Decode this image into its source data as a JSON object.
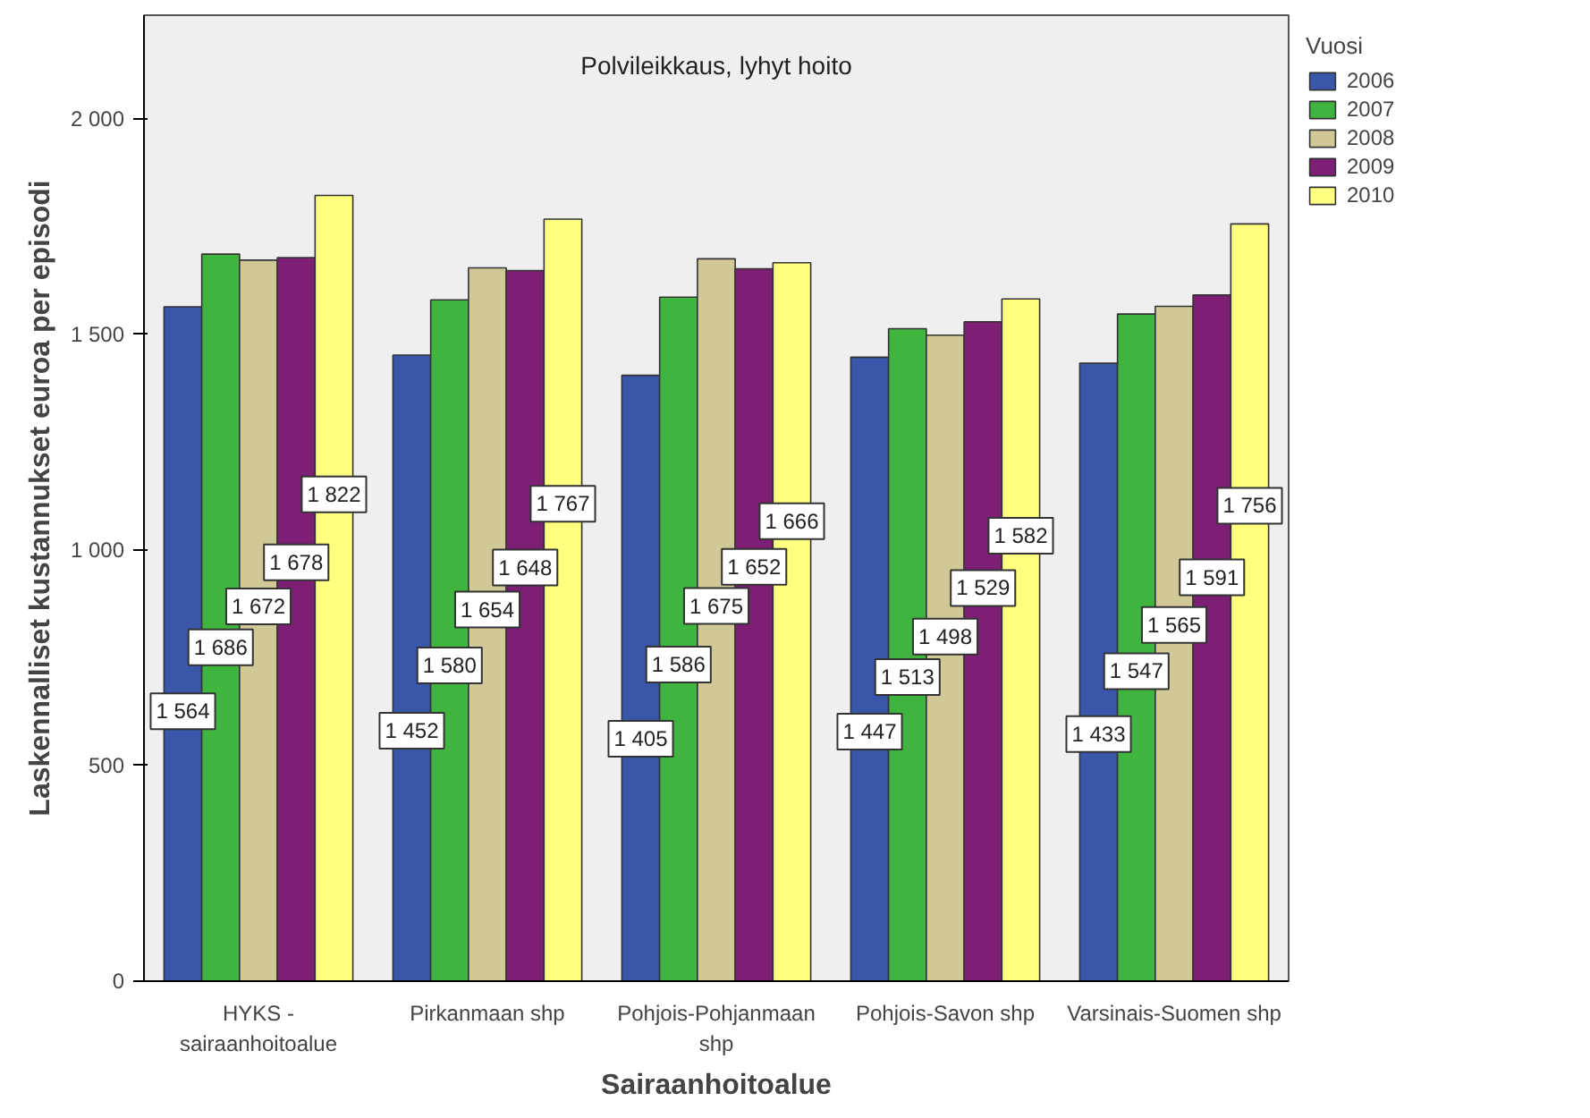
{
  "chart_data": {
    "type": "bar",
    "title": "Polvileikkaus, lyhyt hoito",
    "xlabel": "Sairaanhoitoalue",
    "ylabel": "Laskennalliset kustannukset euroa per episodi",
    "legend_title": "Vuosi",
    "categories": [
      "HYKS -\nsairaanhoitoalue",
      "Pirkanmaan shp",
      "Pohjois-Pohjanmaan\nshp",
      "Pohjois-Savon shp",
      "Varsinais-Suomen shp"
    ],
    "series": [
      {
        "name": "2006",
        "color": "#3a56a8",
        "values": [
          1564,
          1452,
          1405,
          1447,
          1433
        ]
      },
      {
        "name": "2007",
        "color": "#3fb53f",
        "values": [
          1686,
          1580,
          1586,
          1513,
          1547
        ]
      },
      {
        "name": "2008",
        "color": "#d0c997",
        "values": [
          1672,
          1654,
          1675,
          1498,
          1565
        ]
      },
      {
        "name": "2009",
        "color": "#7c1f75",
        "values": [
          1678,
          1648,
          1652,
          1529,
          1591
        ]
      },
      {
        "name": "2010",
        "color": "#ffff80",
        "values": [
          1822,
          1767,
          1666,
          1582,
          1756
        ]
      }
    ],
    "ylim": [
      0,
      2240
    ],
    "yticks": [
      {
        "value": 0,
        "label": "0"
      },
      {
        "value": 500,
        "label": "500"
      },
      {
        "value": 1000,
        "label": "1 000"
      },
      {
        "value": 1500,
        "label": "1 500"
      },
      {
        "value": 2000,
        "label": "2 000"
      }
    ],
    "data_labels": true,
    "grid": false,
    "legend": "top right"
  }
}
